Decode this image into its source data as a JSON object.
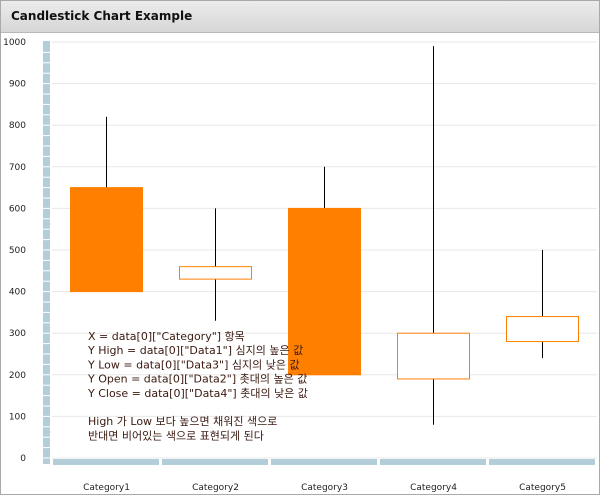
{
  "window": {
    "title": "Candlestick Chart Example"
  },
  "colors": {
    "candle": "#ff8000",
    "axis": "#b4ced9",
    "grid": "#e8e8e8",
    "wick": "#000000",
    "note": "#3a1a10"
  },
  "chart_data": {
    "type": "candlestick",
    "ylim": [
      0,
      1000
    ],
    "yticks": [
      "0",
      "100",
      "200",
      "300",
      "400",
      "500",
      "600",
      "700",
      "800",
      "900",
      "1000"
    ],
    "categories": [
      "Category1",
      "Category2",
      "Category3",
      "Category4",
      "Category5"
    ],
    "high": [
      820,
      600,
      700,
      990,
      500
    ],
    "low": [
      400,
      330,
      200,
      80,
      240
    ],
    "open": [
      650,
      460,
      600,
      300,
      340
    ],
    "close": [
      400,
      430,
      200,
      190,
      280
    ],
    "filled": [
      true,
      false,
      true,
      false,
      false
    ],
    "grid": true,
    "annotation": [
      "X = data[0][\"Category\"] 항목",
      "Y High = data[0][\"Data1\"] 심지의 높은 값",
      "Y Low = data[0][\"Data3\"] 심지의 낮은 값",
      "Y Open = data[0][\"Data2\"] 촛대의 높은 값",
      "Y Close = data[0][\"Data4\"] 촛대의 낮은 값",
      "",
      "High 가 Low 보다 높으면 채워진 색으로",
      "반대면 비어있는 색으로 표현되게 된다"
    ]
  }
}
